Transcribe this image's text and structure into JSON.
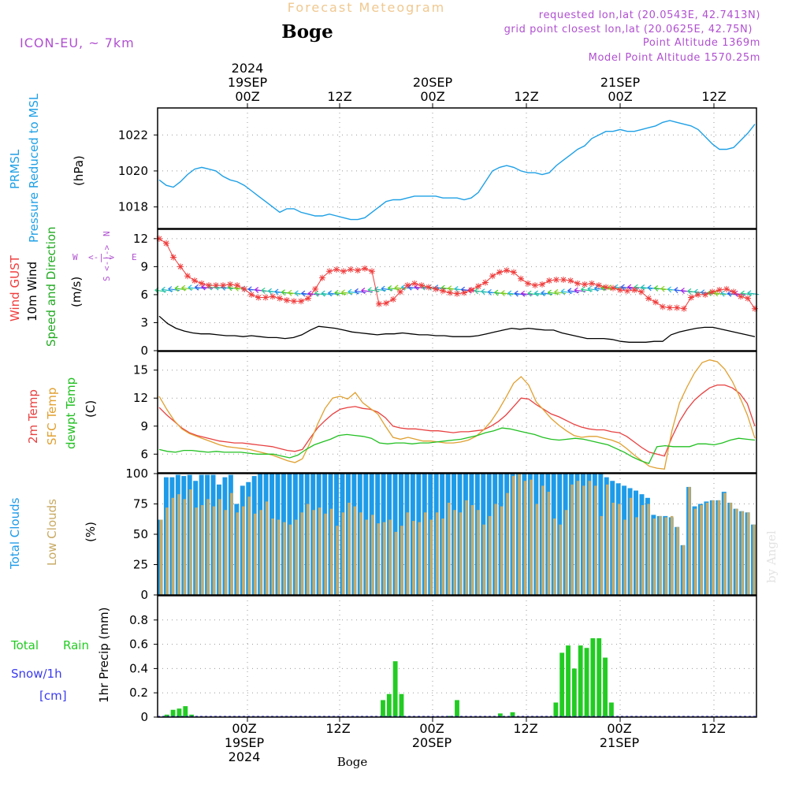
{
  "header": {
    "title": "Forecast Meteogram",
    "location": "Boge",
    "model": "ICON-EU, ~ 7km",
    "requested": "requested lon,lat (20.0543E, 42.7413N)",
    "gridpoint": "grid point closest lon,lat (20.0625E, 42.75N)",
    "point_alt": "Point Altitude 1369m",
    "model_alt": "Model Point Altitude 1570.25m"
  },
  "time_axis": {
    "year": "2024",
    "ticks": [
      "00Z",
      "12Z",
      "00Z",
      "12Z",
      "00Z",
      "12Z"
    ],
    "dates": [
      "19SEP",
      "20SEP",
      "21SEP"
    ],
    "footer": "Boge",
    "watermark": "by Angel"
  },
  "panel_labels": {
    "prmsl": "PRMSL",
    "prmsl2": "Pressure Reduced to MSL",
    "hpa": "(hPa)",
    "gust": "Wind GUST",
    "wind10": "10m Wind",
    "speed_dir": "Speed and Direction",
    "ms": "(m/s)",
    "temp2m": "2m Temp",
    "sfc": "SFC Temp",
    "dewpt": "dewpt Temp",
    "c": "(C)",
    "total_clouds": "Total Clouds",
    "low_clouds": "Low Clouds",
    "pct": "(%)",
    "total": "Total",
    "rain": "Rain",
    "snow": "Snow/1h",
    "cm": "[cm]",
    "precip": "1hr Precip (mm)"
  },
  "compass": {
    "n": "N",
    "s": "S",
    "w": "W",
    "e": "E",
    "arrow": "<-|->"
  },
  "colors": {
    "pressure": "#1ea0e6",
    "gust": "#f03c3c",
    "wind": "#000000",
    "windarrows": "#22bb22",
    "temp2m": "#e84040",
    "sfc": "#e0a030",
    "dewpt": "#22c022",
    "totalcloud": "#1e9be8",
    "lowcloud": "#c8aa64",
    "rain": "#22cc22",
    "snow": "#3a3af0",
    "header": "#b050d0",
    "title": "#f0c890"
  },
  "chart_data": [
    {
      "type": "line",
      "title": "PRMSL",
      "ylabel": "(hPa)",
      "ylim": [
        1016.8,
        1023.5
      ],
      "yticks": [
        1018,
        1020,
        1022
      ],
      "x_hours_from": "2024-09-18T18Z",
      "series": [
        {
          "name": "PRMSL",
          "values": [
            1019.5,
            1019.2,
            1019.1,
            1019.4,
            1019.8,
            1020.1,
            1020.2,
            1020.1,
            1020.0,
            1019.7,
            1019.5,
            1019.4,
            1019.2,
            1018.9,
            1018.6,
            1018.3,
            1018.0,
            1017.7,
            1017.9,
            1017.9,
            1017.7,
            1017.6,
            1017.5,
            1017.5,
            1017.6,
            1017.5,
            1017.4,
            1017.3,
            1017.3,
            1017.4,
            1017.7,
            1018.0,
            1018.3,
            1018.4,
            1018.4,
            1018.5,
            1018.6,
            1018.6,
            1018.6,
            1018.6,
            1018.5,
            1018.5,
            1018.5,
            1018.4,
            1018.5,
            1018.8,
            1019.4,
            1020.0,
            1020.2,
            1020.3,
            1020.2,
            1020.0,
            1019.9,
            1019.9,
            1019.8,
            1019.9,
            1020.3,
            1020.6,
            1020.9,
            1021.2,
            1021.4,
            1021.8,
            1022.0,
            1022.2,
            1022.2,
            1022.3,
            1022.2,
            1022.2,
            1022.3,
            1022.4,
            1022.5,
            1022.7,
            1022.8,
            1022.7,
            1022.6,
            1022.5,
            1022.3,
            1021.9,
            1021.5,
            1021.2,
            1021.2,
            1021.3,
            1021.7,
            1022.1,
            1022.6
          ]
        }
      ]
    },
    {
      "type": "line",
      "title": "Wind",
      "ylabel": "(m/s)",
      "ylim": [
        0,
        13
      ],
      "yticks": [
        0,
        3,
        6,
        9,
        12
      ],
      "series": [
        {
          "name": "Wind GUST",
          "values": [
            12.0,
            11.5,
            10.0,
            9.0,
            8.0,
            7.5,
            7.2,
            7.0,
            7.0,
            7.0,
            7.1,
            7.0,
            6.6,
            6.0,
            5.7,
            5.7,
            5.8,
            5.6,
            5.4,
            5.3,
            5.3,
            5.6,
            6.6,
            7.8,
            8.5,
            8.7,
            8.5,
            8.7,
            8.6,
            8.8,
            8.5,
            5.0,
            5.1,
            5.5,
            6.3,
            7.0,
            7.2,
            7.0,
            6.8,
            6.6,
            6.4,
            6.2,
            6.1,
            6.2,
            6.5,
            6.9,
            7.3,
            8.0,
            8.4,
            8.6,
            8.4,
            7.7,
            7.2,
            7.0,
            7.1,
            7.5,
            7.6,
            7.6,
            7.5,
            7.2,
            7.1,
            7.2,
            7.0,
            6.8,
            6.7,
            6.5,
            6.4,
            6.5,
            6.3,
            5.6,
            5.2,
            4.7,
            4.6,
            4.6,
            4.5,
            5.7,
            6.0,
            6.0,
            6.3,
            6.5,
            6.6,
            6.3,
            5.8,
            5.6,
            4.5
          ]
        },
        {
          "name": "10m Wind",
          "values": [
            3.7,
            2.9,
            2.4,
            2.1,
            1.9,
            1.8,
            1.8,
            1.7,
            1.6,
            1.6,
            1.5,
            1.6,
            1.5,
            1.4,
            1.4,
            1.3,
            1.4,
            1.7,
            2.2,
            2.6,
            2.5,
            2.4,
            2.2,
            2.0,
            1.9,
            1.8,
            1.7,
            1.8,
            1.8,
            1.9,
            1.8,
            1.7,
            1.7,
            1.6,
            1.6,
            1.5,
            1.5,
            1.5,
            1.6,
            1.8,
            2.0,
            2.2,
            2.4,
            2.3,
            2.4,
            2.3,
            2.2,
            2.2,
            1.9,
            1.7,
            1.5,
            1.3,
            1.3,
            1.3,
            1.2,
            1.0,
            0.9,
            0.9,
            0.9,
            1.0,
            1.0,
            1.7,
            2.0,
            2.2,
            2.4,
            2.5,
            2.5,
            2.3,
            2.1,
            1.9,
            1.7,
            1.5
          ]
        }
      ]
    },
    {
      "type": "line",
      "title": "Temperature",
      "ylabel": "(C)",
      "ylim": [
        4.0,
        17.0
      ],
      "yticks": [
        6,
        9,
        12,
        15
      ],
      "series": [
        {
          "name": "2m Temp",
          "values": [
            11.0,
            10.2,
            9.5,
            8.8,
            8.3,
            8.0,
            7.8,
            7.6,
            7.4,
            7.3,
            7.2,
            7.2,
            7.1,
            7.0,
            6.9,
            6.8,
            6.6,
            6.4,
            6.3,
            6.5,
            7.7,
            8.8,
            9.6,
            10.3,
            10.8,
            11.0,
            11.1,
            10.9,
            10.8,
            10.5,
            9.9,
            9.0,
            8.8,
            8.7,
            8.7,
            8.6,
            8.5,
            8.5,
            8.4,
            8.3,
            8.4,
            8.4,
            8.5,
            8.6,
            9.0,
            9.5,
            10.2,
            11.1,
            12.0,
            11.9,
            11.3,
            10.8,
            10.3,
            10.0,
            9.6,
            9.2,
            8.9,
            8.7,
            8.6,
            8.6,
            8.4,
            8.3,
            7.9,
            7.3,
            6.7,
            6.2,
            6.0,
            5.8,
            7.8,
            9.5,
            10.8,
            11.8,
            12.5,
            13.1,
            13.4,
            13.4,
            13.1,
            12.5,
            11.4,
            9.0
          ]
        },
        {
          "name": "SFC Temp",
          "values": [
            12.2,
            10.8,
            9.6,
            8.7,
            8.2,
            7.9,
            7.6,
            7.3,
            7.0,
            6.8,
            6.7,
            6.6,
            6.5,
            6.3,
            6.1,
            5.9,
            5.6,
            5.3,
            5.1,
            5.5,
            7.2,
            9.2,
            10.9,
            12.0,
            12.2,
            11.9,
            12.6,
            11.5,
            10.9,
            10.3,
            9.0,
            7.8,
            7.6,
            7.8,
            7.6,
            7.4,
            7.4,
            7.3,
            7.2,
            7.2,
            7.3,
            7.5,
            7.9,
            8.6,
            9.5,
            10.7,
            12.1,
            13.6,
            14.3,
            13.4,
            11.6,
            10.7,
            9.8,
            9.1,
            8.5,
            8.0,
            7.8,
            7.9,
            7.9,
            7.7,
            7.5,
            7.2,
            6.6,
            5.9,
            5.3,
            4.7,
            4.5,
            4.4,
            8.5,
            11.5,
            13.2,
            14.7,
            15.8,
            16.1,
            15.9,
            15.1,
            13.8,
            12.1,
            10.2,
            7.7
          ]
        },
        {
          "name": "dewpt Temp",
          "values": [
            6.5,
            6.3,
            6.2,
            6.4,
            6.4,
            6.3,
            6.2,
            6.3,
            6.2,
            6.2,
            6.2,
            6.1,
            6.0,
            6.0,
            6.0,
            5.8,
            5.6,
            5.9,
            6.5,
            7.0,
            7.3,
            7.6,
            8.0,
            8.1,
            8.0,
            7.9,
            7.7,
            7.2,
            7.1,
            7.2,
            7.2,
            7.1,
            7.2,
            7.2,
            7.3,
            7.4,
            7.5,
            7.6,
            7.8,
            8.0,
            8.3,
            8.5,
            8.8,
            8.7,
            8.5,
            8.3,
            8.1,
            7.8,
            7.6,
            7.5,
            7.6,
            7.7,
            7.6,
            7.4,
            7.2,
            7.0,
            6.6,
            6.2,
            5.7,
            5.3,
            5.0,
            6.8,
            6.9,
            6.8,
            6.8,
            6.8,
            7.1,
            7.1,
            7.0,
            7.2,
            7.5,
            7.7,
            7.6,
            7.5
          ]
        }
      ]
    },
    {
      "type": "bar",
      "title": "Clouds",
      "ylabel": "(%)",
      "ylim": [
        0,
        100
      ],
      "yticks": [
        0,
        25,
        50,
        75,
        100
      ],
      "series": [
        {
          "name": "Total Clouds",
          "values": [
            62,
            97,
            97,
            99,
            98,
            99,
            94,
            99,
            99,
            99,
            91,
            97,
            99,
            75,
            90,
            93,
            98,
            100,
            100,
            100,
            100,
            100,
            100,
            100,
            100,
            100,
            100,
            100,
            100,
            100,
            100,
            100,
            100,
            100,
            100,
            100,
            100,
            100,
            100,
            100,
            100,
            100,
            100,
            100,
            100,
            100,
            100,
            100,
            100,
            100,
            100,
            100,
            100,
            100,
            100,
            100,
            100,
            100,
            100,
            100,
            100,
            100,
            100,
            100,
            100,
            100,
            100,
            100,
            100,
            100,
            100,
            100,
            100,
            100,
            100,
            100,
            97,
            94,
            92,
            90,
            88,
            86,
            83,
            80,
            66,
            65,
            65,
            64,
            56,
            41,
            89,
            73,
            75,
            77,
            78,
            78,
            85,
            76,
            71,
            69,
            68,
            58
          ]
        },
        {
          "name": "Low Clouds",
          "values": [
            62,
            72,
            80,
            83,
            79,
            87,
            72,
            74,
            79,
            73,
            79,
            70,
            84,
            68,
            73,
            81,
            67,
            70,
            77,
            63,
            62,
            60,
            58,
            62,
            68,
            75,
            70,
            72,
            67,
            71,
            57,
            68,
            76,
            73,
            68,
            62,
            66,
            59,
            60,
            62,
            52,
            57,
            68,
            61,
            60,
            68,
            62,
            68,
            63,
            76,
            70,
            68,
            78,
            74,
            70,
            58,
            65,
            75,
            73,
            84,
            98,
            100,
            94,
            95,
            75,
            90,
            85,
            63,
            58,
            70,
            91,
            94,
            90,
            94,
            90,
            65,
            91,
            76,
            75,
            62,
            80,
            64,
            74,
            75,
            63,
            65,
            64,
            65,
            56,
            41,
            89,
            71,
            74,
            76,
            78,
            78,
            84,
            76,
            71,
            69,
            68,
            58
          ]
        }
      ]
    },
    {
      "type": "bar",
      "title": "Precipitation",
      "ylabel": "1hr Precip (mm)",
      "ylim": [
        0,
        1.0
      ],
      "yticks": [
        0,
        0.2,
        0.4,
        0.6,
        0.8
      ],
      "series": [
        {
          "name": "Total Rain",
          "values": [
            0,
            0.02,
            0.06,
            0.07,
            0.09,
            0.02,
            0,
            0,
            0,
            0,
            0,
            0,
            0,
            0,
            0,
            0,
            0,
            0,
            0,
            0,
            0,
            0,
            0,
            0,
            0,
            0,
            0,
            0,
            0,
            0,
            0,
            0,
            0,
            0,
            0,
            0,
            0.14,
            0.19,
            0.46,
            0.19,
            0,
            0,
            0,
            0,
            0,
            0,
            0,
            0.01,
            0.14,
            0,
            0,
            0,
            0,
            0,
            0,
            0.03,
            0,
            0.04,
            0,
            0,
            0,
            0,
            0,
            0,
            0.12,
            0.53,
            0.59,
            0.4,
            0.59,
            0.57,
            0.65,
            0.65,
            0.49,
            0.12,
            0,
            0,
            0,
            0,
            0,
            0,
            0,
            0,
            0,
            0,
            0,
            0,
            0,
            0,
            0,
            0,
            0,
            0,
            0,
            0,
            0,
            0,
            0
          ]
        },
        {
          "name": "Snow/1h",
          "values": [
            0
          ]
        }
      ]
    }
  ]
}
